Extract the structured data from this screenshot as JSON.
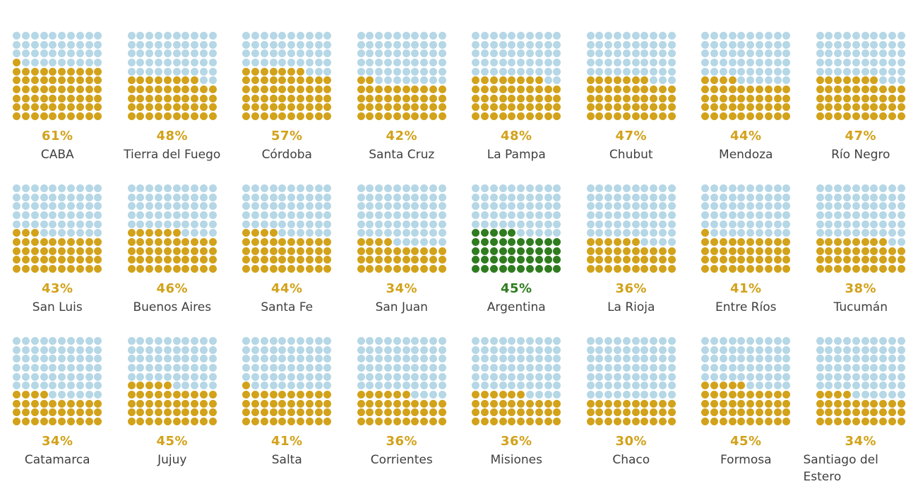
{
  "palette": {
    "filled": "#d2a21a",
    "empty": "#b5d7e6",
    "highlight": "#2f7c1f",
    "name_text": "#3f3f3f"
  },
  "chart_data": {
    "type": "waffle",
    "unit": "percent",
    "grid": {
      "rows": 10,
      "cols": 10,
      "fill_origin": "bottom-left",
      "partial_row_alignment": "left"
    },
    "layout": {
      "rows": 3,
      "cols": 8
    },
    "legend": "none",
    "charts": [
      {
        "label": "CABA",
        "value": 61,
        "value_text": "61%",
        "highlight": false
      },
      {
        "label": "Tierra del Fuego",
        "value": 48,
        "value_text": "48%",
        "highlight": false
      },
      {
        "label": "Córdoba",
        "value": 57,
        "value_text": "57%",
        "highlight": false
      },
      {
        "label": "Santa Cruz",
        "value": 42,
        "value_text": "42%",
        "highlight": false
      },
      {
        "label": "La Pampa",
        "value": 48,
        "value_text": "48%",
        "highlight": false
      },
      {
        "label": "Chubut",
        "value": 47,
        "value_text": "47%",
        "highlight": false
      },
      {
        "label": "Mendoza",
        "value": 44,
        "value_text": "44%",
        "highlight": false
      },
      {
        "label": "Río Negro",
        "value": 47,
        "value_text": "47%",
        "highlight": false
      },
      {
        "label": "San Luis",
        "value": 43,
        "value_text": "43%",
        "highlight": false
      },
      {
        "label": "Buenos Aires",
        "value": 46,
        "value_text": "46%",
        "highlight": false
      },
      {
        "label": "Santa Fe",
        "value": 44,
        "value_text": "44%",
        "highlight": false
      },
      {
        "label": "San Juan",
        "value": 34,
        "value_text": "34%",
        "highlight": false
      },
      {
        "label": "Argentina",
        "value": 45,
        "value_text": "45%",
        "highlight": true
      },
      {
        "label": "La Rioja",
        "value": 36,
        "value_text": "36%",
        "highlight": false
      },
      {
        "label": "Entre Ríos",
        "value": 41,
        "value_text": "41%",
        "highlight": false
      },
      {
        "label": "Tucumán",
        "value": 38,
        "value_text": "38%",
        "highlight": false
      },
      {
        "label": "Catamarca",
        "value": 34,
        "value_text": "34%",
        "highlight": false
      },
      {
        "label": "Jujuy",
        "value": 45,
        "value_text": "45%",
        "highlight": false
      },
      {
        "label": "Salta",
        "value": 41,
        "value_text": "41%",
        "highlight": false
      },
      {
        "label": "Corrientes",
        "value": 36,
        "value_text": "36%",
        "highlight": false
      },
      {
        "label": "Misiones",
        "value": 36,
        "value_text": "36%",
        "highlight": false
      },
      {
        "label": "Chaco",
        "value": 30,
        "value_text": "30%",
        "highlight": false
      },
      {
        "label": "Formosa",
        "value": 45,
        "value_text": "45%",
        "highlight": false
      },
      {
        "label": "Santiago del Estero",
        "value": 34,
        "value_text": "34%",
        "highlight": false
      }
    ]
  }
}
